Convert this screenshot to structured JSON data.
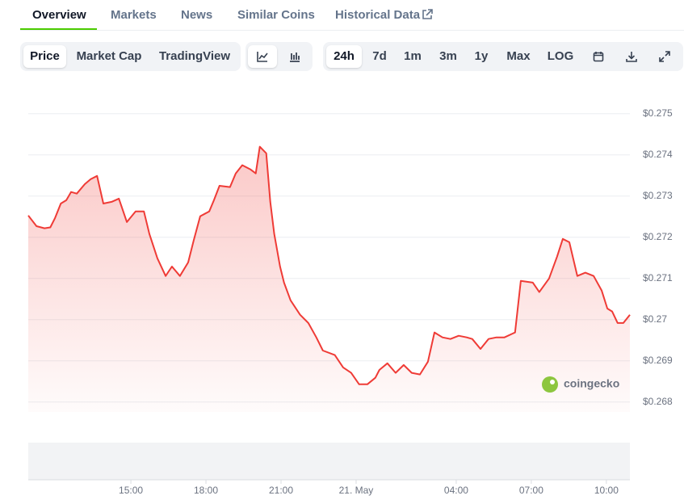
{
  "tabs": [
    "Overview",
    "Markets",
    "News",
    "Similar Coins",
    "Historical Data"
  ],
  "chart_views": [
    "Price",
    "Market Cap",
    "TradingView"
  ],
  "ranges": [
    "24h",
    "7d",
    "1m",
    "3m",
    "1y",
    "Max",
    "LOG"
  ],
  "watermark": "coingecko",
  "chart_data": {
    "type": "line",
    "color": "#ef3b36",
    "grid": true,
    "x": [
      10.9,
      11.23,
      11.55,
      11.78,
      11.97,
      12.2,
      12.42,
      12.61,
      12.84,
      13.16,
      13.39,
      13.65,
      13.9,
      14.23,
      14.52,
      14.84,
      15.19,
      15.52,
      15.74,
      16.06,
      16.39,
      16.64,
      16.96,
      17.29,
      17.51,
      17.77,
      18.13,
      18.32,
      18.54,
      18.96,
      19.19,
      19.45,
      19.77,
      19.99,
      20.15,
      20.41,
      20.57,
      20.73,
      20.96,
      21.12,
      21.38,
      21.76,
      22.09,
      22.41,
      22.67,
      23.15,
      23.48,
      23.8,
      24.12,
      24.45,
      24.77,
      24.93,
      25.25,
      25.58,
      25.9,
      26.22,
      26.55,
      26.87,
      27.13,
      27.45,
      27.77,
      28.1,
      28.42,
      28.64,
      28.97,
      29.29,
      29.61,
      29.93,
      30.35,
      30.58,
      31.06,
      31.32,
      31.71,
      32.03,
      32.26,
      32.52,
      32.84,
      33.16,
      33.49,
      33.81,
      34.04,
      34.23,
      34.45,
      34.68,
      34.94
    ],
    "values": [
      0.27253,
      0.27227,
      0.27222,
      0.27224,
      0.27247,
      0.27282,
      0.2729,
      0.2731,
      0.27306,
      0.27329,
      0.27341,
      0.27349,
      0.27282,
      0.27286,
      0.27294,
      0.27237,
      0.27263,
      0.27263,
      0.27208,
      0.27149,
      0.27106,
      0.27129,
      0.27106,
      0.27139,
      0.27192,
      0.27251,
      0.27263,
      0.2729,
      0.27325,
      0.27322,
      0.27355,
      0.27375,
      0.27365,
      0.27355,
      0.2742,
      0.27404,
      0.27286,
      0.27208,
      0.27129,
      0.2709,
      0.27047,
      0.27012,
      0.26992,
      0.26957,
      0.26925,
      0.26914,
      0.26884,
      0.26871,
      0.26843,
      0.26843,
      0.26859,
      0.26878,
      0.26894,
      0.26871,
      0.2689,
      0.26871,
      0.26867,
      0.26898,
      0.26969,
      0.26957,
      0.26953,
      0.26961,
      0.26957,
      0.26953,
      0.26929,
      0.26953,
      0.26957,
      0.26957,
      0.26969,
      0.27094,
      0.2709,
      0.27067,
      0.271,
      0.27153,
      0.27196,
      0.27188,
      0.27106,
      0.27114,
      0.27106,
      0.27071,
      0.27027,
      0.2702,
      0.26992,
      0.26992,
      0.27012
    ],
    "xlim": [
      10.9,
      34.94
    ],
    "ylim": [
      0.26776,
      0.27531
    ],
    "xticks": [
      {
        "value": 15,
        "label": "15:00"
      },
      {
        "value": 18,
        "label": "18:00"
      },
      {
        "value": 21,
        "label": "21:00"
      },
      {
        "value": 24,
        "label": "21. May"
      },
      {
        "value": 28,
        "label": "04:00"
      },
      {
        "value": 31,
        "label": "07:00"
      },
      {
        "value": 34,
        "label": "10:00"
      }
    ],
    "yticks": [
      {
        "value": 0.268,
        "label": "$0.268"
      },
      {
        "value": 0.269,
        "label": "$0.269"
      },
      {
        "value": 0.27,
        "label": "$0.27"
      },
      {
        "value": 0.271,
        "label": "$0.271"
      },
      {
        "value": 0.272,
        "label": "$0.272"
      },
      {
        "value": 0.273,
        "label": "$0.273"
      },
      {
        "value": 0.274,
        "label": "$0.274"
      },
      {
        "value": 0.275,
        "label": "$0.275"
      }
    ]
  }
}
